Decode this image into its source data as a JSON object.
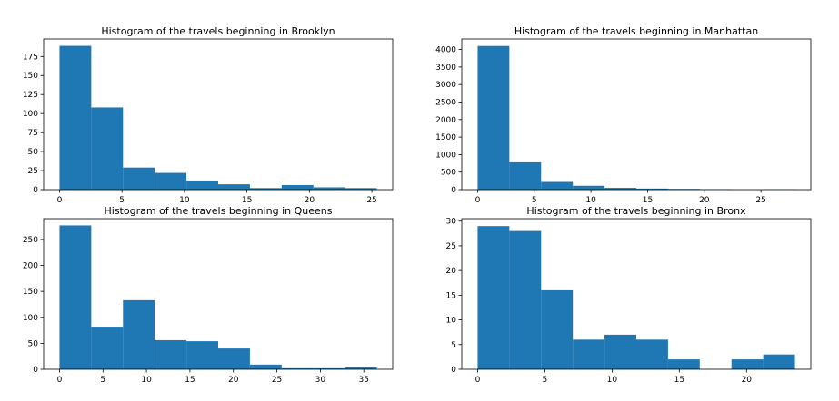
{
  "colors": {
    "bar": "#1f77b4"
  },
  "chart_data": [
    {
      "type": "bar",
      "title": "Histogram of the travels beginning in Brooklyn",
      "bin_edges": [
        0,
        2.54,
        5.08,
        7.62,
        10.16,
        12.7,
        15.24,
        17.78,
        20.32,
        22.86,
        25.4
      ],
      "values": [
        189,
        108,
        29,
        22,
        12,
        7,
        2,
        6,
        3,
        2
      ],
      "xlim": [
        -1.27,
        26.67
      ],
      "ylim": [
        0,
        198
      ],
      "xticks": [
        0,
        5,
        10,
        15,
        20,
        25
      ],
      "yticks": [
        0,
        25,
        50,
        75,
        100,
        125,
        150,
        175
      ],
      "xlabel": "",
      "ylabel": ""
    },
    {
      "type": "bar",
      "title": "Histogram of the travels beginning in Manhattan",
      "bin_edges": [
        0,
        2.8,
        5.6,
        8.4,
        11.2,
        14.0,
        16.8,
        19.6,
        22.4,
        25.2,
        28.0
      ],
      "values": [
        4100,
        780,
        220,
        110,
        50,
        30,
        20,
        10,
        0,
        8
      ],
      "xlim": [
        -1.4,
        29.4
      ],
      "ylim": [
        0,
        4300
      ],
      "xticks": [
        0,
        5,
        10,
        15,
        20,
        25
      ],
      "yticks": [
        0,
        500,
        1000,
        1500,
        2000,
        2500,
        3000,
        3500,
        4000
      ],
      "xlabel": "",
      "ylabel": ""
    },
    {
      "type": "bar",
      "title": "Histogram of the travels beginning in Queens",
      "bin_edges": [
        0,
        3.65,
        7.3,
        10.95,
        14.6,
        18.25,
        21.9,
        25.55,
        29.2,
        32.85,
        36.5
      ],
      "values": [
        277,
        82,
        133,
        56,
        54,
        40,
        9,
        2,
        2,
        4
      ],
      "xlim": [
        -1.825,
        38.325
      ],
      "ylim": [
        0,
        290
      ],
      "xticks": [
        0,
        5,
        10,
        15,
        20,
        25,
        30,
        35
      ],
      "yticks": [
        0,
        50,
        100,
        150,
        200,
        250
      ],
      "xlabel": "",
      "ylabel": ""
    },
    {
      "type": "bar",
      "title": "Histogram of the travels beginning in Bronx",
      "bin_edges": [
        0,
        2.36,
        4.72,
        7.08,
        9.44,
        11.8,
        14.16,
        16.52,
        18.88,
        21.24,
        23.6
      ],
      "values": [
        29,
        28,
        16,
        6,
        7,
        6,
        2,
        0,
        2,
        3
      ],
      "xlim": [
        -1.18,
        24.78
      ],
      "ylim": [
        0,
        30.5
      ],
      "xticks": [
        0,
        5,
        10,
        15,
        20
      ],
      "yticks": [
        0,
        5,
        10,
        15,
        20,
        25,
        30
      ],
      "xlabel": "",
      "ylabel": ""
    }
  ]
}
